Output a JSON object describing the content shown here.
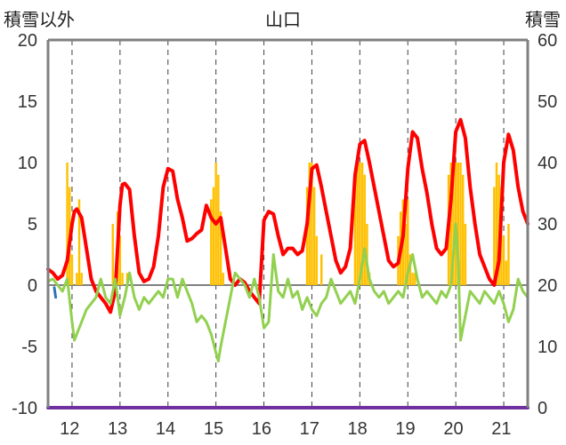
{
  "chart_data": {
    "type": "line",
    "title": "山口",
    "left_axis_label": "積雪以外",
    "right_axis_label": "積雪",
    "left_ylim": [
      -10,
      20
    ],
    "left_yticks": [
      "20",
      "15",
      "10",
      "5",
      "0",
      "-5",
      "-10"
    ],
    "right_ylim": [
      0,
      60
    ],
    "right_yticks": [
      "60",
      "50",
      "40",
      "30",
      "20",
      "10",
      "0"
    ],
    "x_range": [
      11.5,
      21.5
    ],
    "x_tick_labels": [
      "12",
      "13",
      "14",
      "15",
      "16",
      "17",
      "18",
      "19",
      "20",
      "21"
    ],
    "grid": "vertical dashed at day boundaries",
    "colors": {
      "temperature": "#ff0000",
      "green_line": "#92d050",
      "bars": "#ffc000",
      "bottom_line": "#7030a0",
      "small_blue": "#2e75b6",
      "frame": "#808080",
      "grid": "#404040"
    },
    "series": [
      {
        "color": "#ff0000",
        "axis": "left",
        "x": [
          11.5,
          11.6,
          11.7,
          11.8,
          11.9,
          12.0,
          12.05,
          12.1,
          12.2,
          12.3,
          12.4,
          12.5,
          12.6,
          12.7,
          12.8,
          12.9,
          13.0,
          13.05,
          13.1,
          13.2,
          13.3,
          13.4,
          13.5,
          13.6,
          13.7,
          13.8,
          13.9,
          14.0,
          14.1,
          14.2,
          14.3,
          14.4,
          14.5,
          14.6,
          14.7,
          14.8,
          14.9,
          15.0,
          15.1,
          15.2,
          15.3,
          15.4,
          15.5,
          15.6,
          15.7,
          15.8,
          15.9,
          16.0,
          16.1,
          16.2,
          16.3,
          16.4,
          16.5,
          16.6,
          16.7,
          16.8,
          16.9,
          17.0,
          17.1,
          17.2,
          17.3,
          17.4,
          17.5,
          17.6,
          17.7,
          17.8,
          17.9,
          18.0,
          18.1,
          18.2,
          18.3,
          18.4,
          18.5,
          18.6,
          18.7,
          18.8,
          18.9,
          19.0,
          19.1,
          19.2,
          19.3,
          19.4,
          19.5,
          19.6,
          19.7,
          19.8,
          19.9,
          20.0,
          20.1,
          20.2,
          20.3,
          20.4,
          20.5,
          20.6,
          20.7,
          20.8,
          20.9,
          21.0,
          21.1,
          21.2,
          21.3,
          21.4,
          21.5
        ],
        "values": [
          1.3,
          1.0,
          0.5,
          0.8,
          2.0,
          5.0,
          6.0,
          6.2,
          5.5,
          3.0,
          0.5,
          -0.5,
          -1.0,
          -1.5,
          -2.2,
          -0.5,
          6.5,
          8.2,
          8.3,
          7.8,
          4.0,
          1.0,
          0.3,
          0.5,
          1.5,
          4.0,
          8.0,
          9.5,
          9.3,
          7.0,
          5.5,
          3.6,
          3.8,
          4.2,
          4.5,
          6.5,
          5.5,
          5.0,
          5.5,
          3.0,
          0.5,
          0.0,
          0.5,
          0.2,
          -0.5,
          -1.0,
          -1.5,
          5.3,
          6.0,
          5.8,
          4.0,
          2.5,
          3.0,
          3.0,
          2.5,
          2.8,
          5.0,
          9.5,
          9.8,
          8.0,
          6.0,
          4.0,
          2.0,
          1.0,
          1.5,
          3.0,
          9.0,
          11.5,
          11.8,
          10.0,
          8.0,
          6.0,
          4.0,
          2.0,
          1.5,
          1.8,
          4.0,
          9.5,
          12.5,
          12.0,
          9.5,
          7.5,
          5.0,
          3.0,
          2.5,
          3.0,
          7.0,
          12.5,
          13.5,
          12.0,
          8.0,
          5.0,
          2.5,
          1.5,
          0.5,
          0.0,
          2.0,
          10.0,
          12.3,
          11.0,
          8.0,
          6.0,
          5.0
        ]
      },
      {
        "color": "#92d050",
        "axis": "left",
        "x": [
          11.5,
          11.6,
          11.7,
          11.8,
          11.9,
          12.0,
          12.05,
          12.1,
          12.2,
          12.3,
          12.4,
          12.5,
          12.6,
          12.7,
          12.8,
          12.9,
          13.0,
          13.1,
          13.2,
          13.3,
          13.4,
          13.5,
          13.6,
          13.7,
          13.8,
          13.9,
          14.0,
          14.1,
          14.2,
          14.3,
          14.4,
          14.5,
          14.6,
          14.7,
          14.8,
          14.9,
          15.0,
          15.05,
          15.1,
          15.2,
          15.3,
          15.4,
          15.5,
          15.6,
          15.7,
          15.8,
          15.9,
          16.0,
          16.1,
          16.2,
          16.3,
          16.4,
          16.5,
          16.6,
          16.7,
          16.8,
          16.9,
          17.0,
          17.1,
          17.2,
          17.3,
          17.4,
          17.5,
          17.6,
          17.7,
          17.8,
          17.9,
          18.0,
          18.1,
          18.2,
          18.3,
          18.4,
          18.5,
          18.6,
          18.7,
          18.8,
          18.9,
          19.0,
          19.1,
          19.2,
          19.3,
          19.4,
          19.5,
          19.6,
          19.7,
          19.8,
          19.9,
          20.0,
          20.05,
          20.1,
          20.2,
          20.3,
          20.4,
          20.5,
          20.6,
          20.7,
          20.8,
          20.9,
          21.0,
          21.1,
          21.2,
          21.3,
          21.4,
          21.5
        ],
        "values": [
          0.3,
          0.5,
          0.0,
          -0.5,
          0.5,
          -3.0,
          -4.5,
          -4.0,
          -3.0,
          -2.0,
          -1.5,
          -1.0,
          0.5,
          -1.0,
          -1.5,
          0.5,
          -2.5,
          -1.0,
          1.0,
          -1.0,
          -2.0,
          -1.0,
          -1.5,
          -1.0,
          -0.5,
          -1.0,
          0.5,
          0.5,
          -1.0,
          0.5,
          -0.5,
          -1.5,
          -3.0,
          -2.5,
          -3.0,
          -4.0,
          -5.5,
          -6.2,
          -5.0,
          -3.0,
          -1.0,
          1.0,
          0.5,
          0.0,
          -1.0,
          0.5,
          -1.0,
          -3.5,
          -3.0,
          2.5,
          -0.5,
          -1.0,
          0.5,
          -1.0,
          -0.5,
          -2.0,
          -1.0,
          -2.0,
          -2.5,
          -1.5,
          -1.0,
          0.5,
          -0.5,
          -1.5,
          -1.0,
          -0.5,
          -1.5,
          0.5,
          3.0,
          0.5,
          -0.5,
          -1.0,
          -0.5,
          -1.5,
          -1.0,
          -0.5,
          -1.0,
          1.0,
          2.5,
          0.5,
          -1.0,
          -0.5,
          -1.0,
          -1.5,
          -0.5,
          -1.0,
          0.0,
          5.0,
          2.0,
          -4.5,
          -2.5,
          -0.5,
          -1.0,
          -1.5,
          -0.5,
          -1.0,
          -1.5,
          -0.5,
          -1.5,
          -3.0,
          -2.0,
          0.5,
          -0.5,
          -1.0
        ]
      },
      {
        "color": "#7030a0",
        "axis": "left",
        "x": [
          11.5,
          21.5
        ],
        "values": [
          -10,
          -10
        ]
      },
      {
        "color": "#2e75b6",
        "axis": "left",
        "x": [
          11.63,
          11.66
        ],
        "values": [
          -0.2,
          -1.0
        ]
      }
    ],
    "bars": {
      "color": "#ffc000",
      "axis": "right",
      "x": [
        11.9,
        11.95,
        12.0,
        12.1,
        12.15,
        12.2,
        12.85,
        12.95,
        13.0,
        13.05,
        13.15,
        14.9,
        14.95,
        15.0,
        15.05,
        15.1,
        15.15,
        16.9,
        16.95,
        17.0,
        17.05,
        17.1,
        17.2,
        17.9,
        17.95,
        18.0,
        18.05,
        18.1,
        18.15,
        18.2,
        18.8,
        18.85,
        18.9,
        18.95,
        19.0,
        19.05,
        19.1,
        19.15,
        19.85,
        19.9,
        19.95,
        20.0,
        20.05,
        20.1,
        20.15,
        20.2,
        20.8,
        20.85,
        20.9,
        20.95,
        21.0,
        21.05,
        21.1
      ],
      "values": [
        40,
        36,
        25,
        22,
        34,
        22,
        30,
        32,
        28,
        22,
        22,
        34,
        36,
        40,
        38,
        32,
        22,
        36,
        40,
        40,
        36,
        28,
        25,
        36,
        40,
        40,
        40,
        38,
        30,
        22,
        28,
        32,
        34,
        30,
        34,
        25,
        22,
        22,
        38,
        40,
        40,
        40,
        40,
        40,
        38,
        30,
        36,
        40,
        38,
        36,
        28,
        24,
        30
      ]
    }
  }
}
